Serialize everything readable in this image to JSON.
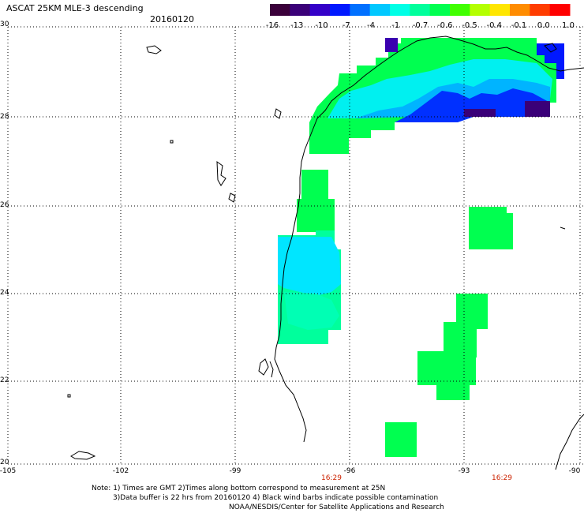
{
  "header": {
    "title": "ASCAT 25KM MLE-3 descending",
    "date": "20160120"
  },
  "colorbar": {
    "labels": [
      "-16",
      "-13",
      "-10",
      "-7",
      "-4",
      "-1",
      "-0.7",
      "-0.6",
      "-0.5",
      "-0.4",
      "-0.1",
      "0.0",
      "1.0"
    ],
    "colors": [
      "#3a003a",
      "#3a0078",
      "#3400c8",
      "#0018ff",
      "#0070ff",
      "#00c8ff",
      "#00ffe6",
      "#00ff9c",
      "#00ff50",
      "#40ff00",
      "#b4ff00",
      "#ffe600",
      "#ff8c00",
      "#ff3c00",
      "#ff0000"
    ]
  },
  "axes": {
    "lat_labels": [
      "30",
      "28",
      "26",
      "24",
      "22",
      "20"
    ],
    "lon_labels": [
      "-105",
      "-102",
      "-99",
      "-96",
      "-93",
      "-90"
    ]
  },
  "times": [
    "16:29",
    "16:29"
  ],
  "notes": {
    "line1": "Note: 1) Times are GMT 2)Times along bottom correspond to measurement at 25N",
    "line2": "3)Data buffer is 22 hrs from 20160120 4) Black wind barbs indicate possible contamination",
    "line3": "NOAA/NESDIS/Center for Satellite Applications and Research"
  },
  "legend_colors": {
    "green": "#00ff50",
    "cyan": "#00ffe6",
    "blue": "#0018ff",
    "purple": "#3a0078"
  }
}
